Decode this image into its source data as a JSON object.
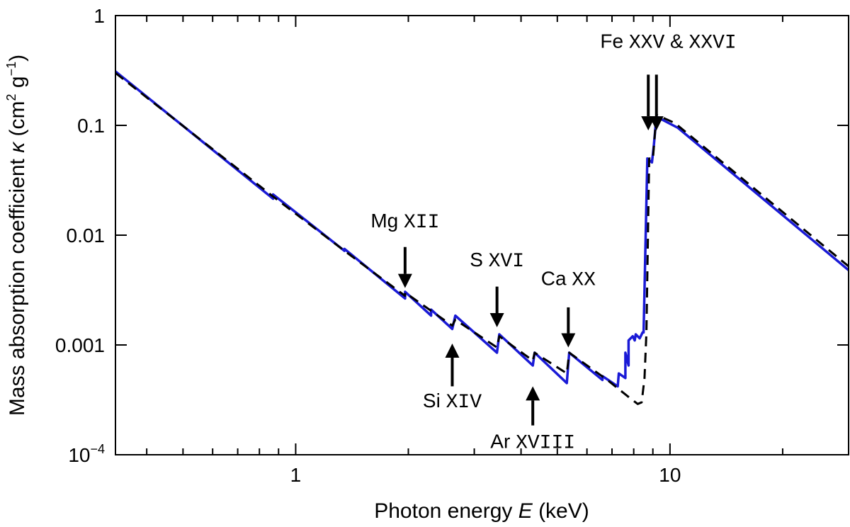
{
  "chart_data": {
    "type": "line",
    "x_scale": "log",
    "y_scale": "log",
    "xlim": [
      0.33,
      30
    ],
    "ylim": [
      0.0001,
      1
    ],
    "xlabel": {
      "prefix": "Photon energy ",
      "symbol": "E",
      "suffix": " (keV)"
    },
    "ylabel": {
      "prefix": "Mass absorption  coefficient ",
      "symbol": "κ",
      "units_open": " (cm",
      "sup1": "2",
      "units_mid": " g",
      "sup2": "−1",
      "units_close": ")"
    },
    "x_ticks": [
      {
        "value": 1,
        "label": "1"
      },
      {
        "value": 10,
        "label": "10"
      }
    ],
    "y_ticks": [
      {
        "value": 1,
        "label": "1"
      },
      {
        "value": 0.1,
        "label": "0.1"
      },
      {
        "value": 0.01,
        "label": "0.01"
      },
      {
        "value": 0.001,
        "label": "0.001"
      },
      {
        "value": 0.0001,
        "label": "10",
        "sup": "−4"
      }
    ],
    "series": [
      {
        "name": "blue-solid",
        "color": "#1a1ad6",
        "style": "solid",
        "points": [
          [
            0.33,
            0.31
          ],
          [
            0.87,
            0.0215
          ],
          [
            0.87,
            0.0235
          ],
          [
            1.35,
            0.0072
          ],
          [
            1.35,
            0.0075
          ],
          [
            1.96,
            0.00265
          ],
          [
            1.96,
            0.00305
          ],
          [
            2.3,
            0.00185
          ],
          [
            2.3,
            0.0021
          ],
          [
            2.62,
            0.0014
          ],
          [
            2.67,
            0.00185
          ],
          [
            3.45,
            0.00085
          ],
          [
            3.5,
            0.00125
          ],
          [
            4.3,
            0.00065
          ],
          [
            4.35,
            0.00085
          ],
          [
            5.3,
            0.00045
          ],
          [
            5.38,
            0.00085
          ],
          [
            6.6,
            0.00048
          ],
          [
            6.6,
            0.00052
          ],
          [
            7.25,
            0.00042
          ],
          [
            7.3,
            0.00055
          ],
          [
            7.6,
            0.0005
          ],
          [
            7.6,
            0.00085
          ],
          [
            7.75,
            0.00065
          ],
          [
            7.75,
            0.0011
          ],
          [
            7.95,
            0.0012
          ],
          [
            8.05,
            0.0011
          ],
          [
            8.1,
            0.00125
          ],
          [
            8.3,
            0.00115
          ],
          [
            8.45,
            0.0013
          ],
          [
            8.5,
            0.0013
          ],
          [
            8.7,
            0.05
          ],
          [
            8.95,
            0.046
          ],
          [
            9.05,
            0.065
          ],
          [
            9.2,
            0.12
          ],
          [
            10.5,
            0.095
          ],
          [
            30,
            0.0048
          ]
        ]
      },
      {
        "name": "black-dashed",
        "color": "#000000",
        "style": "dashed",
        "points": [
          [
            0.33,
            0.3
          ],
          [
            0.87,
            0.0225
          ],
          [
            1.35,
            0.0072
          ],
          [
            1.96,
            0.0028
          ],
          [
            1.96,
            0.003
          ],
          [
            2.62,
            0.0015
          ],
          [
            2.67,
            0.0017
          ],
          [
            3.45,
            0.00095
          ],
          [
            3.5,
            0.0012
          ],
          [
            4.3,
            0.00072
          ],
          [
            4.35,
            0.00085
          ],
          [
            5.3,
            0.00055
          ],
          [
            5.38,
            0.00085
          ],
          [
            6.8,
            0.00048
          ],
          [
            7.8,
            0.00033
          ],
          [
            8.2,
            0.00029
          ],
          [
            8.4,
            0.0003
          ],
          [
            8.55,
            0.0005
          ],
          [
            8.65,
            0.0013
          ],
          [
            8.8,
            0.05
          ],
          [
            9.0,
            0.049
          ],
          [
            9.2,
            0.125
          ],
          [
            10.3,
            0.105
          ],
          [
            30,
            0.0052
          ]
        ]
      }
    ],
    "annotations": [
      {
        "element": "Mg",
        "ion": "XII",
        "dir": "down",
        "x": 1.96,
        "tip": 0.0033,
        "tail": 0.0078,
        "label_y": 0.0118
      },
      {
        "element": "S",
        "ion": "XVI",
        "dir": "down",
        "x": 3.45,
        "tip": 0.00145,
        "tail": 0.0034,
        "label_y": 0.0052
      },
      {
        "element": "Ca",
        "ion": "XX",
        "dir": "down",
        "x": 5.35,
        "tip": 0.00095,
        "tail": 0.0022,
        "label_y": 0.0035
      },
      {
        "element": "Si",
        "ion": "XIV",
        "dir": "up",
        "x": 2.62,
        "tip": 0.00103,
        "tail": 0.00042,
        "label_y": 0.00027
      },
      {
        "element": "Ar",
        "ion": "XVIII",
        "dir": "up",
        "x": 4.3,
        "tip": 0.00042,
        "tail": 0.000185,
        "label_y": 0.000115
      }
    ],
    "fe_annotation": {
      "element": "Fe",
      "ion1": "XXV",
      "amp": " & ",
      "ion2": "XXVI",
      "arrow_x": [
        8.75,
        9.2
      ],
      "tip": 0.09,
      "tail": 0.29,
      "label_x": 9.9,
      "label_y": 0.51
    }
  }
}
